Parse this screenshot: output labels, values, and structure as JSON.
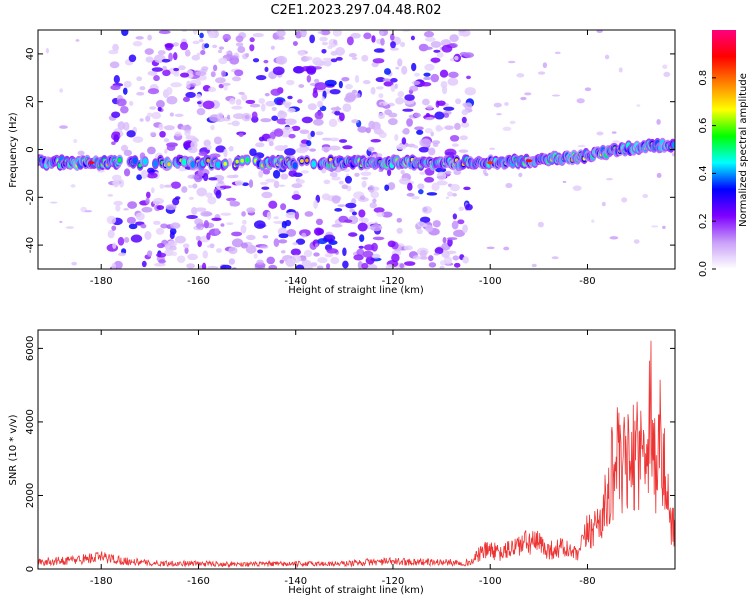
{
  "figure": {
    "title": "C2E1.2023.297.04.48.R02"
  },
  "chart_data": [
    {
      "type": "heatmap",
      "title": "C2E1.2023.297.04.48.R02",
      "xlabel": "Height of straight line (km)",
      "ylabel": "Frequency (Hz)",
      "xlim": [
        -193,
        -62
      ],
      "ylim": [
        -50,
        50
      ],
      "xticks": [
        -180,
        -160,
        -140,
        -120,
        -100,
        -80
      ],
      "yticks": [
        -40,
        -20,
        0,
        20,
        40
      ],
      "colorbar": {
        "label": "Normalized spectral amplitude",
        "range": [
          0,
          1
        ],
        "ticks": [
          0.0,
          0.2,
          0.4,
          0.6,
          0.8
        ],
        "colormap": [
          "#ffffff",
          "#c9a0f8",
          "#7f00ff",
          "#0000ff",
          "#00ffff",
          "#00ff00",
          "#ffff00",
          "#ff8000",
          "#ff0000",
          "#ff0080"
        ]
      },
      "ridge": {
        "description_points": [
          [
            -193,
            -5.5
          ],
          [
            -150,
            -5.5
          ],
          [
            -120,
            -5.5
          ],
          [
            -100,
            -5.5
          ],
          [
            -90,
            -4.5
          ],
          [
            -80,
            -2.5
          ],
          [
            -70,
            1.0
          ],
          [
            -62,
            2.0
          ]
        ],
        "peak_amplitude": 0.85
      },
      "noise_band": {
        "x_range": [
          -178,
          -104
        ],
        "amplitude_range": [
          0.05,
          0.35
        ]
      }
    },
    {
      "type": "line",
      "xlabel": "Height of straight line (km)",
      "ylabel": "SNR (10 * v/v)",
      "xlim": [
        -193,
        -62
      ],
      "ylim": [
        0,
        6500
      ],
      "xticks": [
        -180,
        -160,
        -140,
        -120,
        -100,
        -80
      ],
      "yticks": [
        0,
        2000,
        4000,
        6000
      ],
      "color": "#ee3333",
      "series_envelope": {
        "x": [
          -193,
          -185,
          -180,
          -175,
          -170,
          -160,
          -150,
          -140,
          -130,
          -125,
          -120,
          -110,
          -104,
          -102,
          -100,
          -98,
          -95,
          -92,
          -90,
          -88,
          -85,
          -82,
          -80,
          -78,
          -76,
          -75,
          -74,
          -73,
          -72,
          -71,
          -70,
          -69,
          -68,
          -67,
          -66,
          -65,
          -64,
          -63,
          -62
        ],
        "y": [
          250,
          350,
          450,
          300,
          220,
          200,
          180,
          190,
          200,
          260,
          280,
          250,
          240,
          600,
          750,
          550,
          850,
          1000,
          950,
          700,
          800,
          500,
          1400,
          1700,
          2500,
          3500,
          4500,
          3200,
          4300,
          3400,
          5000,
          4200,
          4600,
          6400,
          3600,
          4900,
          3200,
          1900,
          1600
        ]
      }
    }
  ]
}
